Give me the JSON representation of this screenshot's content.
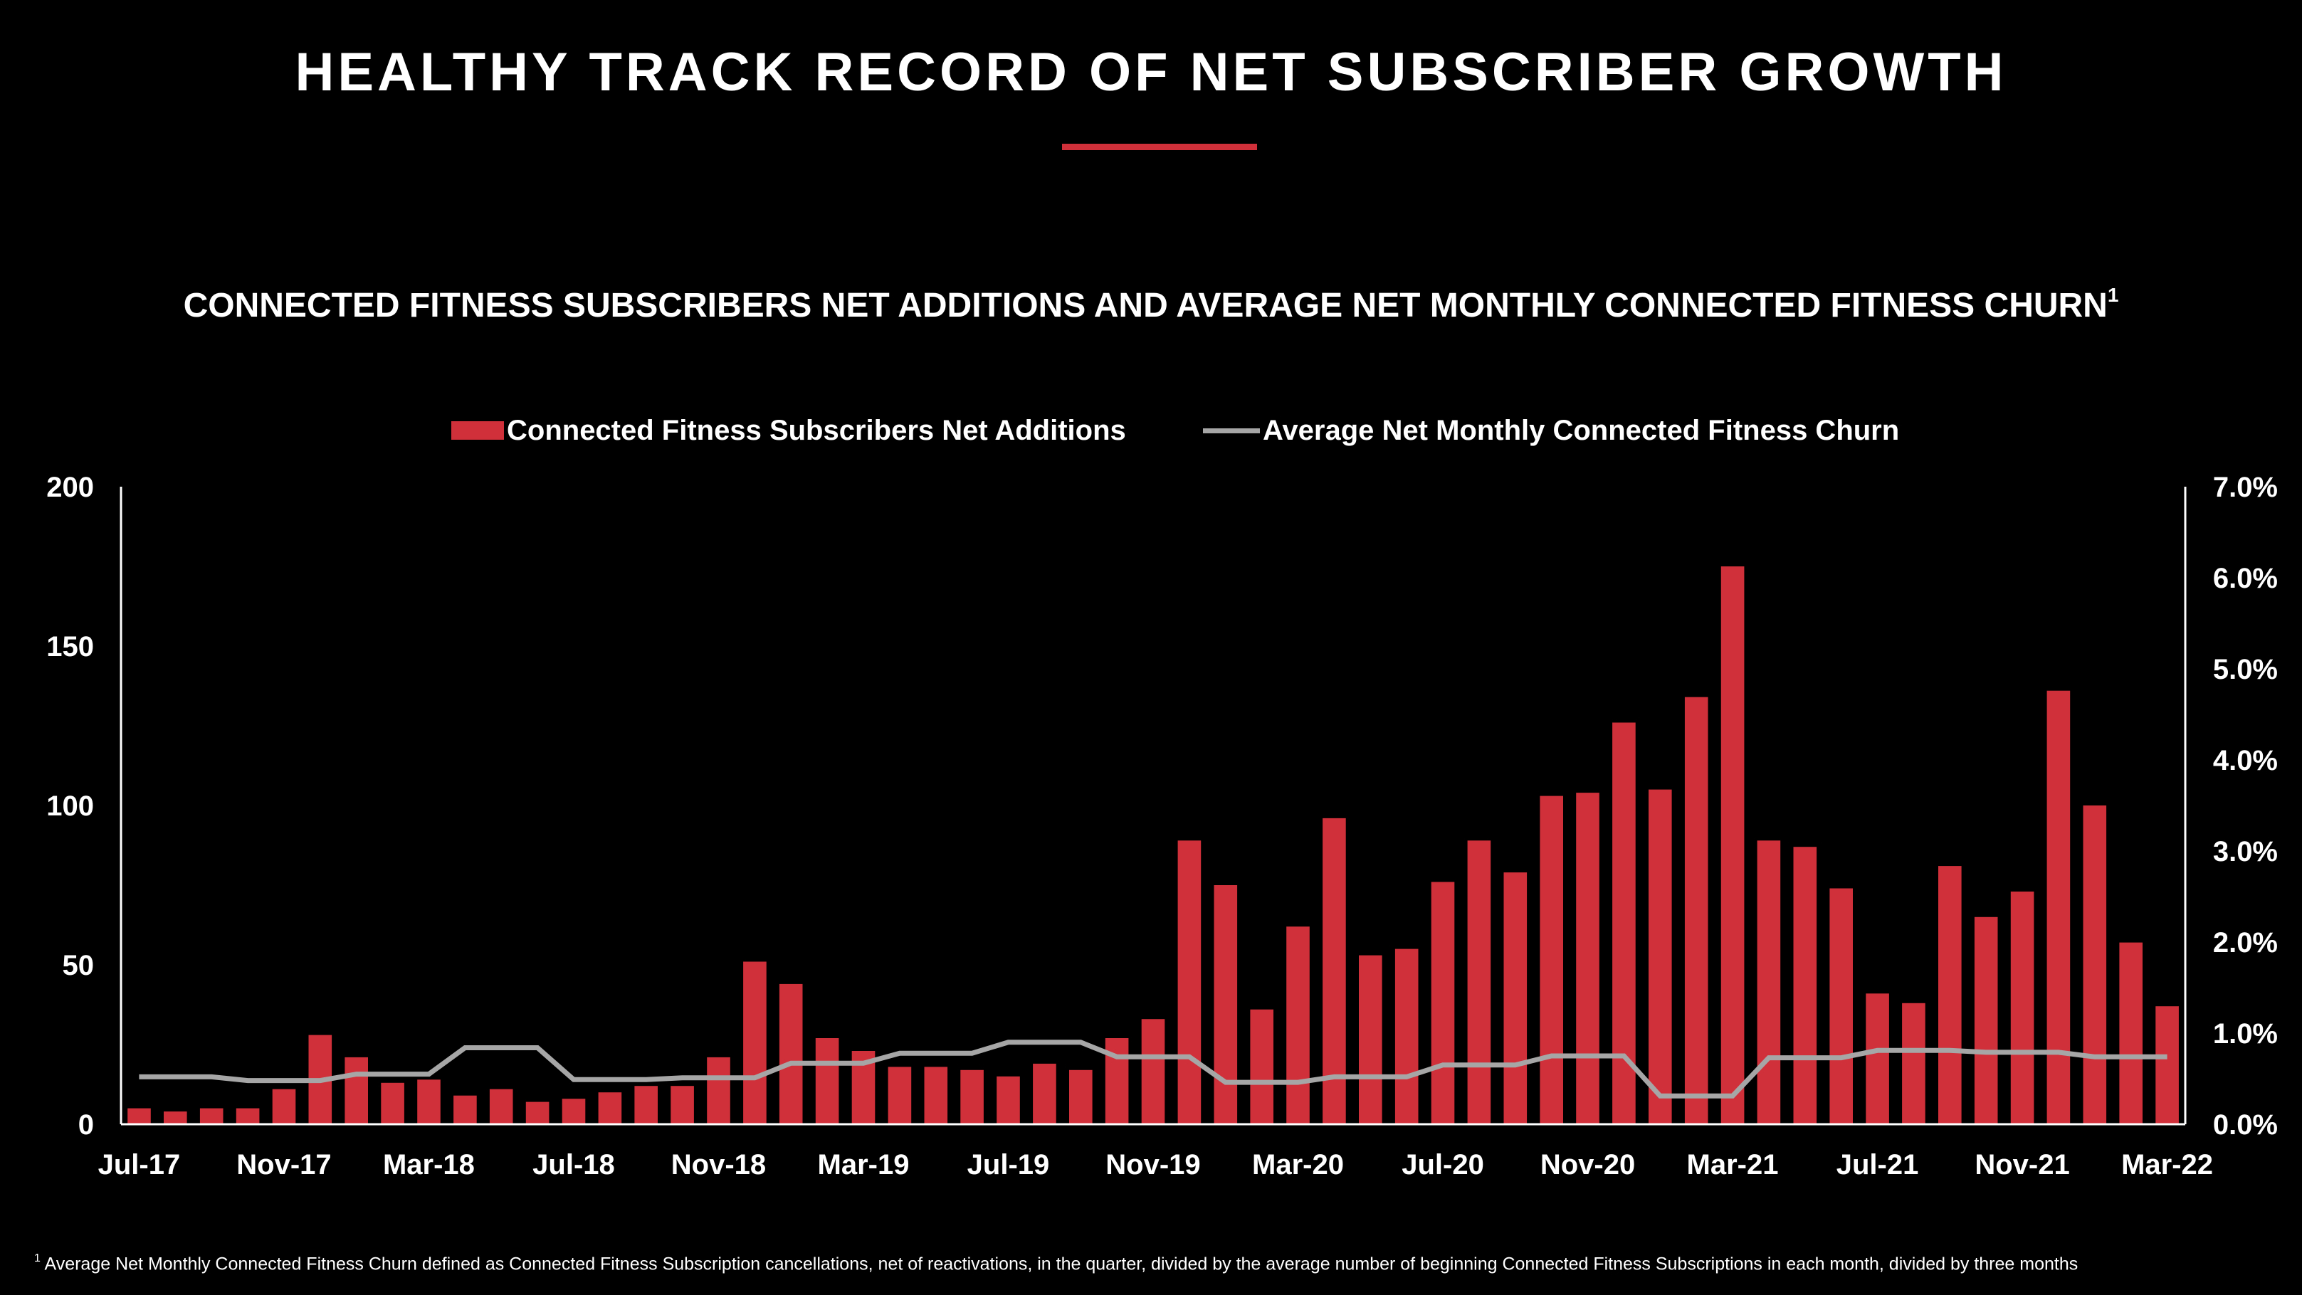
{
  "slide": {
    "title": "HEALTHY TRACK RECORD OF NET SUBSCRIBER GROWTH",
    "accent_color": "#d0303a"
  },
  "footnote": {
    "marker": "1",
    "text": "Average Net Monthly Connected Fitness Churn defined as Connected Fitness Subscription cancellations, net of reactivations, in the quarter, divided by the average number of beginning Connected Fitness Subscriptions in each month, divided by three months"
  },
  "chart_data": {
    "type": "bar",
    "title": "CONNECTED FITNESS SUBSCRIBERS NET ADDITIONS AND AVERAGE NET MONTHLY CONNECTED FITNESS CHURN",
    "title_footnote_marker": "1",
    "legend_position": "top-center",
    "grid": false,
    "categories": [
      "Jul-17",
      "Aug-17",
      "Sep-17",
      "Oct-17",
      "Nov-17",
      "Dec-17",
      "Jan-18",
      "Feb-18",
      "Mar-18",
      "Apr-18",
      "May-18",
      "Jun-18",
      "Jul-18",
      "Aug-18",
      "Sep-18",
      "Oct-18",
      "Nov-18",
      "Dec-18",
      "Jan-19",
      "Feb-19",
      "Mar-19",
      "Apr-19",
      "May-19",
      "Jun-19",
      "Jul-19",
      "Aug-19",
      "Sep-19",
      "Oct-19",
      "Nov-19",
      "Dec-19",
      "Jan-20",
      "Feb-20",
      "Mar-20",
      "Apr-20",
      "May-20",
      "Jun-20",
      "Jul-20",
      "Aug-20",
      "Sep-20",
      "Oct-20",
      "Nov-20",
      "Dec-20",
      "Jan-21",
      "Feb-21",
      "Mar-21",
      "Apr-21",
      "May-21",
      "Jun-21",
      "Jul-21",
      "Aug-21",
      "Sep-21",
      "Oct-21",
      "Nov-21",
      "Dec-21",
      "Jan-22",
      "Feb-22",
      "Mar-22"
    ],
    "x_tick_labels": [
      "Jul-17",
      "Nov-17",
      "Mar-18",
      "Jul-18",
      "Nov-18",
      "Mar-19",
      "Jul-19",
      "Nov-19",
      "Mar-20",
      "Jul-20",
      "Nov-20",
      "Mar-21",
      "Jul-21",
      "Nov-21",
      "Mar-22"
    ],
    "y_left": {
      "ylim": [
        0,
        200
      ],
      "ticks": [
        "0",
        "50",
        "100",
        "150",
        "200"
      ]
    },
    "y_right": {
      "ylim": [
        0,
        7.0
      ],
      "ticks": [
        "0.0%",
        "1.0%",
        "2.0%",
        "3.0%",
        "4.0%",
        "5.0%",
        "6.0%",
        "7.0%"
      ]
    },
    "series": [
      {
        "name": "Connected Fitness Subscribers Net Additions",
        "kind": "bar",
        "axis": "left",
        "color": "#d0303a",
        "values": [
          5,
          4,
          5,
          5,
          11,
          28,
          21,
          13,
          14,
          9,
          11,
          7,
          8,
          10,
          12,
          12,
          21,
          51,
          44,
          27,
          23,
          18,
          18,
          17,
          15,
          19,
          17,
          27,
          33,
          89,
          75,
          36,
          62,
          96,
          53,
          55,
          76,
          89,
          79,
          103,
          104,
          126,
          105,
          134,
          175,
          89,
          87,
          74,
          41,
          38,
          81,
          65,
          73,
          136,
          100,
          57,
          37
        ]
      },
      {
        "name": "Average Net Monthly Connected Fitness Churn",
        "kind": "line",
        "axis": "right",
        "color": "#a6a6a6",
        "values": [
          0.52,
          0.52,
          0.52,
          0.48,
          0.48,
          0.48,
          0.55,
          0.55,
          0.55,
          0.84,
          0.84,
          0.84,
          0.49,
          0.49,
          0.49,
          0.51,
          0.51,
          0.51,
          0.67,
          0.67,
          0.67,
          0.78,
          0.78,
          0.78,
          0.9,
          0.9,
          0.9,
          0.74,
          0.74,
          0.74,
          0.46,
          0.46,
          0.46,
          0.52,
          0.52,
          0.52,
          0.65,
          0.65,
          0.65,
          0.75,
          0.75,
          0.75,
          0.31,
          0.31,
          0.31,
          0.73,
          0.73,
          0.73,
          0.81,
          0.81,
          0.81,
          0.79,
          0.79,
          0.79,
          0.74,
          0.74,
          0.74
        ]
      }
    ]
  }
}
